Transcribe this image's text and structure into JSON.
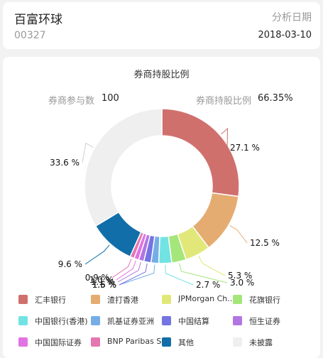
{
  "header": {
    "stock_name": "百富环球",
    "stock_code": "00327",
    "analysis_label": "分析日期",
    "analysis_date": "2018-03-10"
  },
  "chart_card": {
    "title": "券商持股比例",
    "participants_label": "券商参与数",
    "participants_value": "100",
    "holding_label": "券商持股比例",
    "holding_value": "66.35%"
  },
  "chart_data": {
    "type": "pie",
    "title": "券商持股比例",
    "series": [
      {
        "name": "汇丰银行",
        "value": 27.1,
        "label": "27.1 %",
        "color": "#d0706d"
      },
      {
        "name": "渣打香港",
        "value": 12.5,
        "label": "12.5 %",
        "color": "#e5ac72"
      },
      {
        "name": "JPMorgan Ch...",
        "value": 5.3,
        "label": "5.3 %",
        "color": "#e1e879"
      },
      {
        "name": "花旗银行",
        "value": 3.0,
        "label": "3.0 %",
        "color": "#a5e67a"
      },
      {
        "name": "中国银行(香港)",
        "value": 2.7,
        "label": "2.7 %",
        "color": "#72e3e3"
      },
      {
        "name": "凯基证券亚洲",
        "value": 1.6,
        "label": "1.6 %",
        "color": "#75aee6"
      },
      {
        "name": "中国结算",
        "value": 1.5,
        "label": "1.5 %",
        "color": "#7474e2"
      },
      {
        "name": "恒生证券",
        "value": 1.1,
        "label": "1.1 %",
        "color": "#b375e2"
      },
      {
        "name": "中国国际证券",
        "value": 1.0,
        "label": "1.0 %",
        "color": "#e173e2"
      },
      {
        "name": "BNP Paribas S...",
        "value": 0.9,
        "label": "0.9 %",
        "color": "#e476b0"
      },
      {
        "name": "其他",
        "value": 9.6,
        "label": "9.6 %",
        "color": "#116ea8"
      },
      {
        "name": "未披露",
        "value": 33.6,
        "label": "33.6 %",
        "color": "#efefef"
      }
    ]
  }
}
